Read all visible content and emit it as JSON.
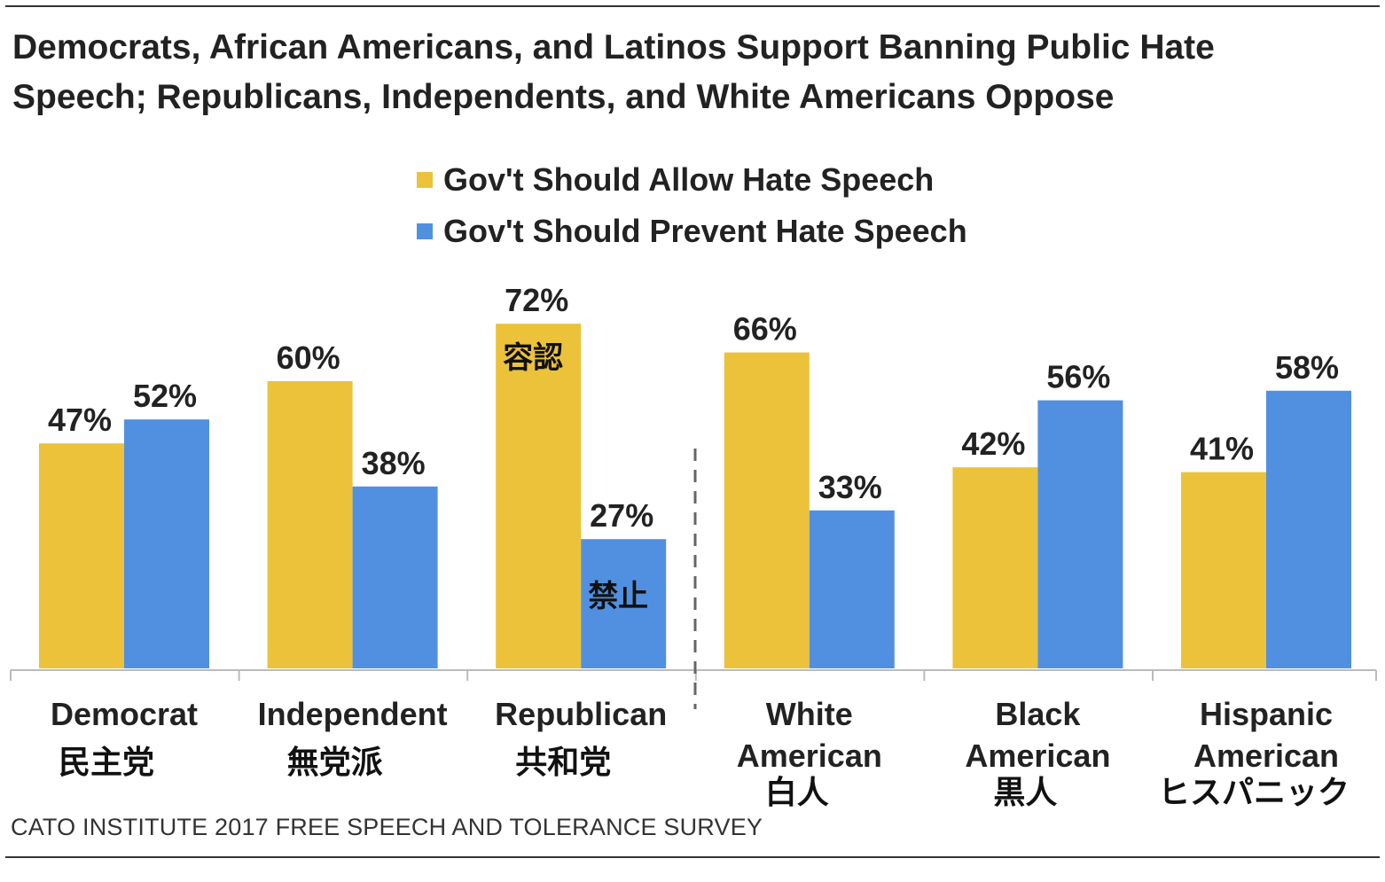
{
  "chart_data": {
    "type": "bar",
    "title": "Democrats, African Americans, and Latinos Support Banning Public Hate Speech; Republicans, Independents, and White Americans Oppose",
    "categories": [
      {
        "label": "Democrat",
        "sublabel": "民主党"
      },
      {
        "label": "Independent",
        "sublabel": "無党派"
      },
      {
        "label": "Republican",
        "sublabel": "共和党"
      },
      {
        "label": "White American",
        "sublabel": "白人"
      },
      {
        "label": "Black American",
        "sublabel": "黒人"
      },
      {
        "label": "Hispanic American",
        "sublabel": "ヒスパニック"
      }
    ],
    "series": [
      {
        "name": "Gov't Should Allow Hate Speech",
        "color": "#EBC23A",
        "values": [
          47,
          60,
          72,
          66,
          42,
          41
        ],
        "value_labels": [
          "47%",
          "60%",
          "72%",
          "66%",
          "42%",
          "41%"
        ]
      },
      {
        "name": "Gov't Should Prevent Hate Speech",
        "color": "#5190E0",
        "values": [
          52,
          38,
          27,
          33,
          56,
          58
        ],
        "value_labels": [
          "52%",
          "38%",
          "27%",
          "33%",
          "56%",
          "58%"
        ]
      }
    ],
    "annotations": [
      {
        "text": "容認",
        "category": 2,
        "series": 0
      },
      {
        "text": "禁止",
        "category": 2,
        "series": 1
      }
    ],
    "ylim": [
      0,
      100
    ],
    "grid": false,
    "legend": "top-center",
    "separator": "dashed line between Republican and White American"
  },
  "source": "CATO INSTITUTE 2017 FREE SPEECH AND TOLERANCE SURVEY"
}
